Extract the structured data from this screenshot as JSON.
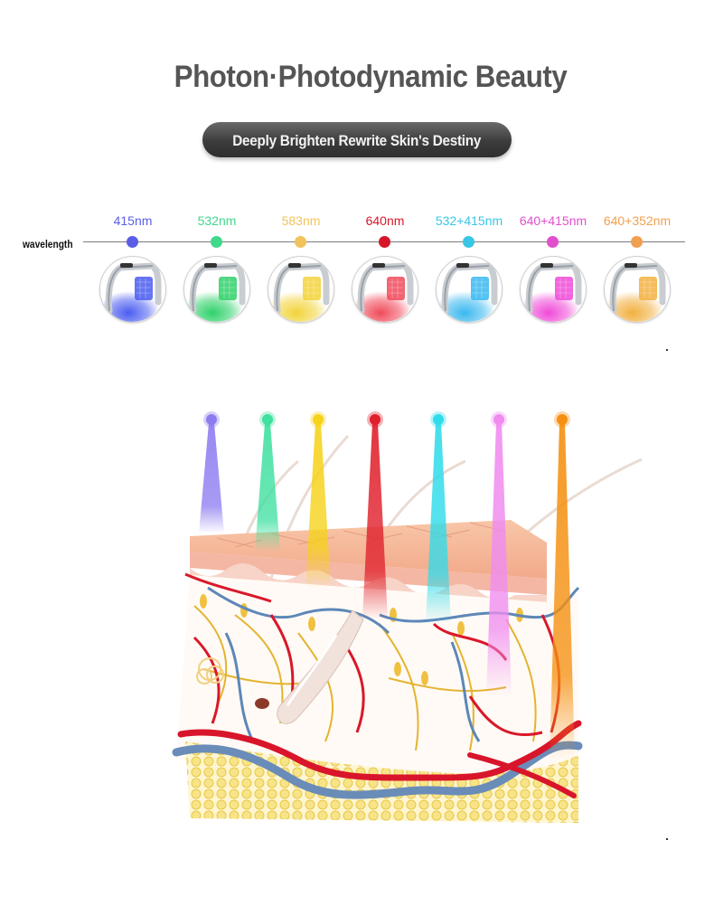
{
  "header": {
    "title": "Photon·Photodynamic Beauty",
    "subtitle": "Deeply Brighten Rewrite Skin's Destiny"
  },
  "wavelength": {
    "label": "wavelength",
    "items": [
      {
        "label": "415nm",
        "color": "#5a5ee6"
      },
      {
        "label": "532nm",
        "color": "#3fd98a"
      },
      {
        "label": "583nm",
        "color": "#f1c35a"
      },
      {
        "label": "640nm",
        "color": "#d6172a"
      },
      {
        "label": "532+415nm",
        "color": "#39c6e6"
      },
      {
        "label": "640+415nm",
        "color": "#e24fce"
      },
      {
        "label": "640+352nm",
        "color": "#f0a050"
      }
    ]
  },
  "devices": [
    {
      "icon": "led-mask-blue-icon",
      "color": "#4a5cf0"
    },
    {
      "icon": "led-mask-green-icon",
      "color": "#2fd16a"
    },
    {
      "icon": "led-mask-yellow-icon",
      "color": "#f2d43a"
    },
    {
      "icon": "led-mask-red-icon",
      "color": "#f04a5a"
    },
    {
      "icon": "led-mask-cyan-icon",
      "color": "#3ab8f0"
    },
    {
      "icon": "led-mask-pink-icon",
      "color": "#f04ad8"
    },
    {
      "icon": "led-mask-orange-icon",
      "color": "#f2b040"
    }
  ],
  "beams": [
    {
      "color": "#8c7cf0"
    },
    {
      "color": "#3fe0a0"
    },
    {
      "color": "#f6d21a"
    },
    {
      "color": "#e0202c"
    },
    {
      "color": "#30dcea"
    },
    {
      "color": "#f08cf0"
    },
    {
      "color": "#f59010"
    }
  ]
}
